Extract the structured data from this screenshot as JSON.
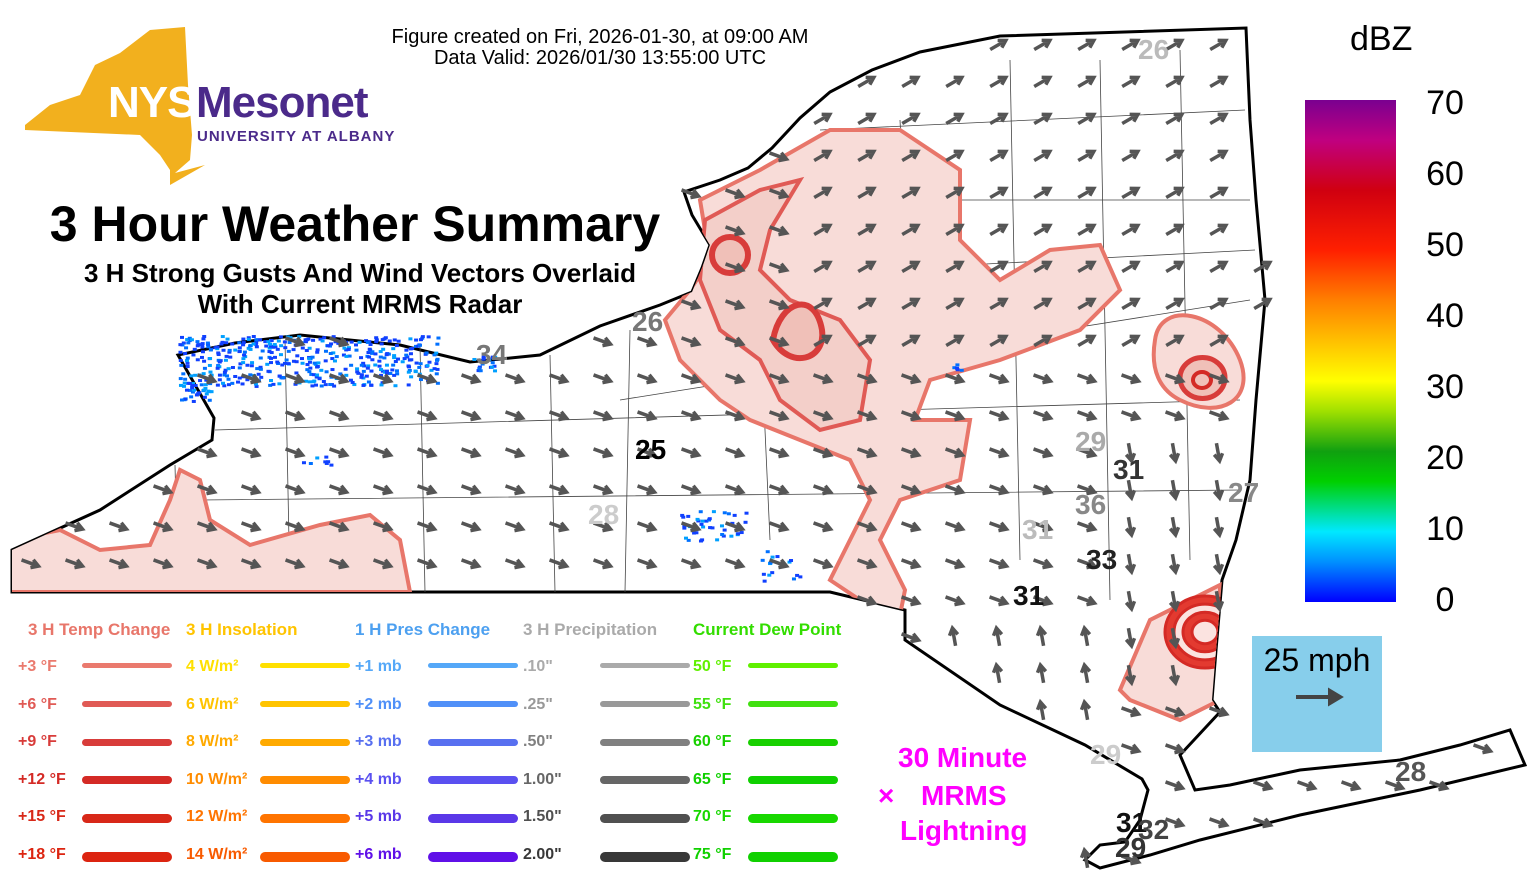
{
  "header": {
    "created": "Figure created on Fri, 2026-01-30, at 09:00 AM",
    "valid": "Data Valid: 2026/01/30 13:55:00 UTC"
  },
  "logo": {
    "nys": "NYS",
    "mesonet": "Mesonet",
    "university": "UNIVERSITY AT ALBANY",
    "brand_gold": "#f2b01e",
    "brand_purple": "#4b2a8a"
  },
  "title": "3 Hour Weather Summary",
  "subtitle_line1": "3 H Strong Gusts And Wind Vectors Overlaid",
  "subtitle_line2": "With Current MRMS Radar",
  "colorbar": {
    "unit": "dBZ",
    "ticks": [
      "70",
      "60",
      "50",
      "40",
      "30",
      "20",
      "10",
      "0"
    ],
    "range": [
      0,
      70
    ]
  },
  "wind_key": {
    "label": "25 mph"
  },
  "lightning": {
    "line1": "30 Minute",
    "symbol": "×",
    "line2": "MRMS",
    "line3": "Lightning",
    "color": "#ff00ff"
  },
  "gusts": [
    {
      "value": "26",
      "shade": "#bbbbbb"
    },
    {
      "value": "26",
      "shade": "#777777"
    },
    {
      "value": "34",
      "shade": "#777777"
    },
    {
      "value": "25",
      "shade": "#000000"
    },
    {
      "value": "28",
      "shade": "#cccccc"
    },
    {
      "value": "29",
      "shade": "#aaaaaa"
    },
    {
      "value": "31",
      "shade": "#333333"
    },
    {
      "value": "36",
      "shade": "#888888"
    },
    {
      "value": "27",
      "shade": "#888888"
    },
    {
      "value": "31",
      "shade": "#bbbbbb"
    },
    {
      "value": "33",
      "shade": "#222222"
    },
    {
      "value": "31",
      "shade": "#111111"
    },
    {
      "value": "29",
      "shade": "#cccccc"
    },
    {
      "value": "28",
      "shade": "#555555"
    },
    {
      "value": "31",
      "shade": "#111111"
    },
    {
      "value": "32",
      "shade": "#444444"
    },
    {
      "value": "29",
      "shade": "#333333"
    }
  ],
  "legend": [
    {
      "title": "3 H Temp Change",
      "color": "#e8766a",
      "items": [
        {
          "label": "+3 °F",
          "color": "#ea7a6e"
        },
        {
          "label": "+6 °F",
          "color": "#e05a55"
        },
        {
          "label": "+9 °F",
          "color": "#d83c3a"
        },
        {
          "label": "+12 °F",
          "color": "#d42a25"
        },
        {
          "label": "+15 °F",
          "color": "#d82818"
        },
        {
          "label": "+18 °F",
          "color": "#dc2410"
        }
      ]
    },
    {
      "title": "3 H Insolation",
      "color": "#ffc400",
      "items": [
        {
          "label": "4 W/m²",
          "color": "#ffe000"
        },
        {
          "label": "6 W/m²",
          "color": "#ffc400"
        },
        {
          "label": "8 W/m²",
          "color": "#ffaa00"
        },
        {
          "label": "10 W/m²",
          "color": "#ff8c00"
        },
        {
          "label": "12 W/m²",
          "color": "#ff7400"
        },
        {
          "label": "14 W/m²",
          "color": "#f85a00"
        }
      ]
    },
    {
      "title": "1 H Pres Change",
      "color": "#4da0f0",
      "items": [
        {
          "label": "+1 mb",
          "color": "#55a8f8"
        },
        {
          "label": "+2 mb",
          "color": "#5090f8"
        },
        {
          "label": "+3 mb",
          "color": "#5870f0"
        },
        {
          "label": "+4 mb",
          "color": "#5a50f0"
        },
        {
          "label": "+5 mb",
          "color": "#5a38e8"
        },
        {
          "label": "+6 mb",
          "color": "#6010e8"
        }
      ]
    },
    {
      "title": "3 H Precipitation",
      "color": "#aaaaaa",
      "items": [
        {
          "label": ".10\"",
          "color": "#aaaaaa"
        },
        {
          "label": ".25\"",
          "color": "#999999"
        },
        {
          "label": ".50\"",
          "color": "#808080"
        },
        {
          "label": "1.00\"",
          "color": "#666666"
        },
        {
          "label": "1.50\"",
          "color": "#505050"
        },
        {
          "label": "2.00\"",
          "color": "#383838"
        }
      ]
    },
    {
      "title": "Current Dew Point",
      "color": "#33dd00",
      "items": [
        {
          "label": "50 °F",
          "color": "#60f000"
        },
        {
          "label": "55 °F",
          "color": "#40e010"
        },
        {
          "label": "60 °F",
          "color": "#18d000"
        },
        {
          "label": "65 °F",
          "color": "#10d000"
        },
        {
          "label": "70 °F",
          "color": "#18d800"
        },
        {
          "label": "75 °F",
          "color": "#10d000"
        }
      ]
    }
  ]
}
